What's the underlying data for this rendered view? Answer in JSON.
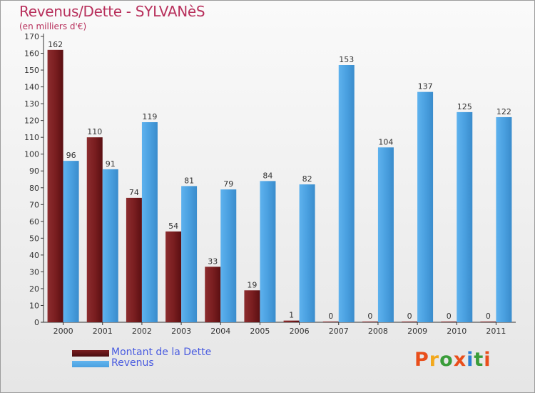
{
  "chart_data": {
    "type": "bar",
    "title": "Revenus/Dette - SYLVANèS",
    "subtitle": "(en milliers d'€)",
    "categories": [
      "2000",
      "2001",
      "2002",
      "2003",
      "2004",
      "2005",
      "2006",
      "2007",
      "2008",
      "2009",
      "2010",
      "2011"
    ],
    "series": [
      {
        "name": "Montant de la Dette",
        "color": "#7a1e20",
        "values": [
          162,
          110,
          74,
          54,
          33,
          19,
          1,
          0,
          0,
          0,
          0,
          0
        ]
      },
      {
        "name": "Revenus",
        "color": "#4aa0e0",
        "values": [
          96,
          91,
          119,
          81,
          79,
          84,
          82,
          153,
          104,
          137,
          125,
          122
        ]
      }
    ],
    "ylim": [
      0,
      170
    ],
    "yticks": [
      0,
      10,
      20,
      30,
      40,
      50,
      60,
      70,
      80,
      90,
      100,
      110,
      120,
      130,
      140,
      150,
      160,
      170
    ],
    "grid": false,
    "legend_position": "bottom-left"
  },
  "logo": {
    "text": "Proxiti",
    "colors": [
      "#e94e1b",
      "#f2a81d",
      "#3a9d3a",
      "#e94e1b",
      "#2a7fd4",
      "#3a9d3a",
      "#e94e1b"
    ]
  }
}
